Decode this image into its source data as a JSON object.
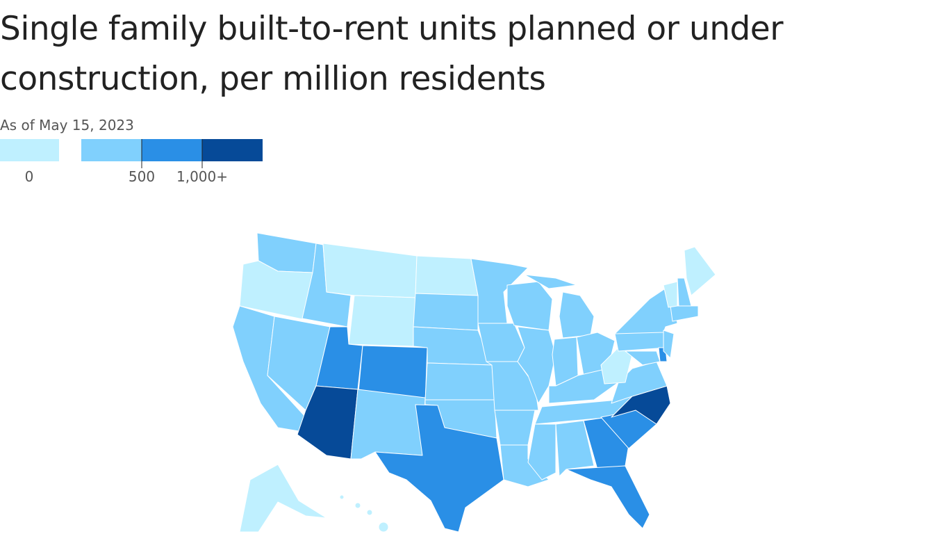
{
  "header": {
    "title_lines": [
      "Single family built-to-rent units planned or under",
      "construction, per million residents"
    ],
    "subtitle": "As of May 15, 2023"
  },
  "legend": {
    "colors": [
      "#bff0ff",
      "#80d0fd",
      "#2a8fe6",
      "#064a98"
    ],
    "labels": [
      "0",
      "500",
      "1,000+"
    ]
  }
}
